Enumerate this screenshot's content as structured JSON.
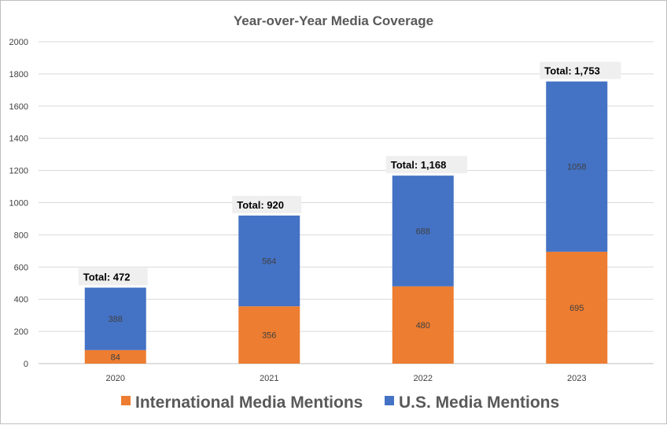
{
  "chart_data": {
    "type": "bar",
    "stacked": true,
    "title": "Year-over-Year Media Coverage",
    "categories": [
      "2020",
      "2021",
      "2022",
      "2023"
    ],
    "series": [
      {
        "name": "International Media Mentions",
        "color": "#ED7D31",
        "values": [
          84,
          356,
          480,
          695
        ]
      },
      {
        "name": "U.S. Media Mentions",
        "color": "#4472C4",
        "values": [
          388,
          564,
          688,
          1058
        ]
      }
    ],
    "totals": [
      "Total: 472",
      "Total: 920",
      "Total: 1,168",
      "Total: 1,753"
    ],
    "ylim": [
      0,
      2000
    ],
    "yticks": [
      0,
      200,
      400,
      600,
      800,
      1000,
      1200,
      1400,
      1600,
      1800,
      2000
    ],
    "grid": true,
    "legend_position": "bottom"
  }
}
